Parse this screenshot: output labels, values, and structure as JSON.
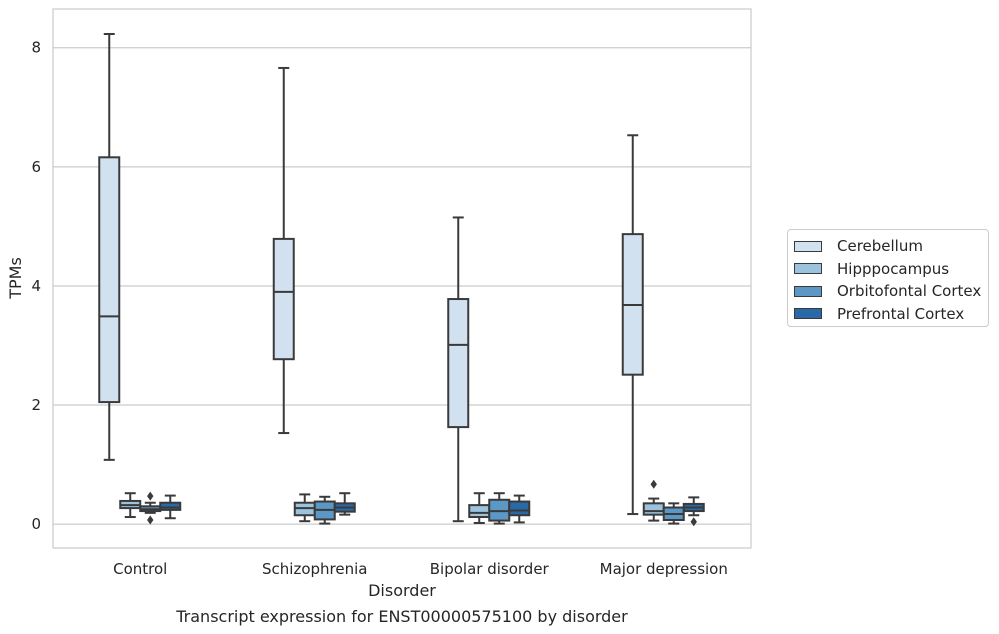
{
  "caption": "Transcript expression for ENST00000575100 by disorder",
  "chart_data": {
    "type": "box",
    "xlabel": "Disorder",
    "ylabel": "TPMs",
    "ylim": [
      -0.4,
      8.65
    ],
    "yticks": [
      0,
      2,
      4,
      6,
      8
    ],
    "grid": "horizontal",
    "legend_position": "right",
    "categories": [
      "Control",
      "Schizophrenia",
      "Bipolar disorder",
      "Major depression"
    ],
    "series": [
      {
        "name": "Cerebellum",
        "color": "#d1e1f0",
        "boxes": [
          {
            "whislo": 1.08,
            "q1": 2.05,
            "med": 3.49,
            "q3": 6.16,
            "whishi": 8.23,
            "fliers": []
          },
          {
            "whislo": 1.53,
            "q1": 2.77,
            "med": 3.9,
            "q3": 4.79,
            "whishi": 7.66,
            "fliers": []
          },
          {
            "whislo": 0.05,
            "q1": 1.63,
            "med": 3.01,
            "q3": 3.78,
            "whishi": 5.15,
            "fliers": []
          },
          {
            "whislo": 0.17,
            "q1": 2.51,
            "med": 3.68,
            "q3": 4.87,
            "whishi": 6.53,
            "fliers": []
          }
        ]
      },
      {
        "name": "Hipppocampus",
        "color": "#9bc3de",
        "boxes": [
          {
            "whislo": 0.12,
            "q1": 0.27,
            "med": 0.32,
            "q3": 0.39,
            "whishi": 0.52,
            "fliers": []
          },
          {
            "whislo": 0.05,
            "q1": 0.15,
            "med": 0.27,
            "q3": 0.36,
            "whishi": 0.5,
            "fliers": []
          },
          {
            "whislo": 0.02,
            "q1": 0.12,
            "med": 0.19,
            "q3": 0.32,
            "whishi": 0.52,
            "fliers": []
          },
          {
            "whislo": 0.06,
            "q1": 0.16,
            "med": 0.22,
            "q3": 0.35,
            "whishi": 0.43,
            "fliers": [
              0.67
            ]
          }
        ]
      },
      {
        "name": "Orbitofontal Cortex",
        "color": "#5b98c6",
        "boxes": [
          {
            "whislo": 0.19,
            "q1": 0.22,
            "med": 0.25,
            "q3": 0.3,
            "whishi": 0.36,
            "fliers": [
              0.07,
              0.47
            ]
          },
          {
            "whislo": 0.01,
            "q1": 0.08,
            "med": 0.24,
            "q3": 0.38,
            "whishi": 0.46,
            "fliers": []
          },
          {
            "whislo": 0.01,
            "q1": 0.06,
            "med": 0.22,
            "q3": 0.41,
            "whishi": 0.52,
            "fliers": []
          },
          {
            "whislo": 0.01,
            "q1": 0.07,
            "med": 0.17,
            "q3": 0.28,
            "whishi": 0.35,
            "fliers": []
          }
        ]
      },
      {
        "name": "Prefrontal Cortex",
        "color": "#2a69a8",
        "boxes": [
          {
            "whislo": 0.1,
            "q1": 0.24,
            "med": 0.28,
            "q3": 0.36,
            "whishi": 0.48,
            "fliers": []
          },
          {
            "whislo": 0.16,
            "q1": 0.21,
            "med": 0.28,
            "q3": 0.35,
            "whishi": 0.52,
            "fliers": []
          },
          {
            "whislo": 0.03,
            "q1": 0.15,
            "med": 0.23,
            "q3": 0.38,
            "whishi": 0.48,
            "fliers": []
          },
          {
            "whislo": 0.15,
            "q1": 0.22,
            "med": 0.28,
            "q3": 0.34,
            "whishi": 0.45,
            "fliers": [
              0.04
            ]
          }
        ]
      }
    ]
  }
}
